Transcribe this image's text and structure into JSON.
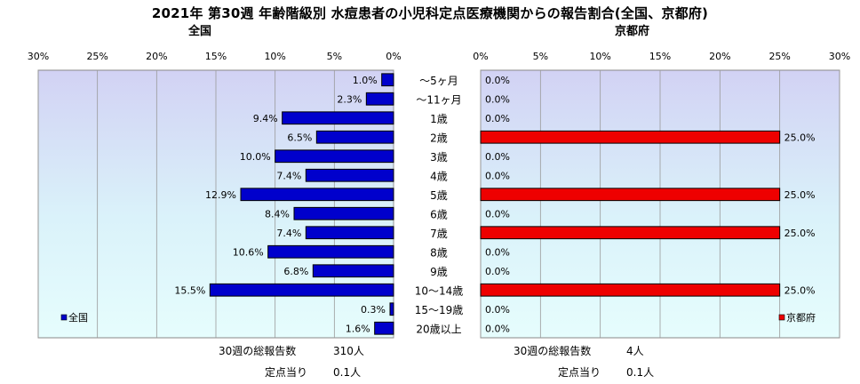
{
  "title": "2021年 第30週 年齢階級別 水痘患者の小児科定点医療機関からの報告割合(全国、京都府)",
  "chart_data": [
    {
      "type": "bar",
      "orientation": "horizontal",
      "panel_title": "全国",
      "legend": "全国",
      "legend_position": "bottom-left",
      "bar_color": "#0000cc",
      "axis_reversed": true,
      "xlim": [
        0,
        30
      ],
      "x_ticks": [
        "30%",
        "25%",
        "20%",
        "15%",
        "10%",
        "5%",
        "0%"
      ],
      "grid": true,
      "categories": [
        "～5ヶ月",
        "～11ヶ月",
        "1歳",
        "2歳",
        "3歳",
        "4歳",
        "5歳",
        "6歳",
        "7歳",
        "8歳",
        "9歳",
        "10～14歳",
        "15～19歳",
        "20歳以上"
      ],
      "values": [
        1.0,
        2.3,
        9.4,
        6.5,
        10.0,
        7.4,
        12.9,
        8.4,
        7.4,
        10.6,
        6.8,
        15.5,
        0.3,
        1.6
      ],
      "value_labels": [
        "1.0%",
        "2.3%",
        "9.4%",
        "6.5%",
        "10.0%",
        "7.4%",
        "12.9%",
        "8.4%",
        "7.4%",
        "10.6%",
        "6.8%",
        "15.5%",
        "0.3%",
        "1.6%"
      ]
    },
    {
      "type": "bar",
      "orientation": "horizontal",
      "panel_title": "京都府",
      "legend": "京都府",
      "legend_position": "bottom-right",
      "bar_color": "#ee0000",
      "axis_reversed": false,
      "xlim": [
        0,
        30
      ],
      "x_ticks": [
        "0%",
        "5%",
        "10%",
        "15%",
        "20%",
        "25%",
        "30%"
      ],
      "grid": true,
      "categories": [
        "～5ヶ月",
        "～11ヶ月",
        "1歳",
        "2歳",
        "3歳",
        "4歳",
        "5歳",
        "6歳",
        "7歳",
        "8歳",
        "9歳",
        "10～14歳",
        "15～19歳",
        "20歳以上"
      ],
      "values": [
        0.0,
        0.0,
        0.0,
        25.0,
        0.0,
        0.0,
        25.0,
        0.0,
        25.0,
        0.0,
        0.0,
        25.0,
        0.0,
        0.0
      ],
      "value_labels": [
        "0.0%",
        "0.0%",
        "0.0%",
        "25.0%",
        "0.0%",
        "0.0%",
        "25.0%",
        "0.0%",
        "25.0%",
        "0.0%",
        "0.0%",
        "25.0%",
        "0.0%",
        "0.0%"
      ]
    }
  ],
  "footer": {
    "national": {
      "total_label": "30週の総報告数",
      "total_value": "310人",
      "per_site_label": "定点当り",
      "per_site_value": "0.1人"
    },
    "kyoto": {
      "total_label": "30週の総報告数",
      "total_value": "4人",
      "per_site_label": "定点当り",
      "per_site_value": "0.1人"
    }
  }
}
